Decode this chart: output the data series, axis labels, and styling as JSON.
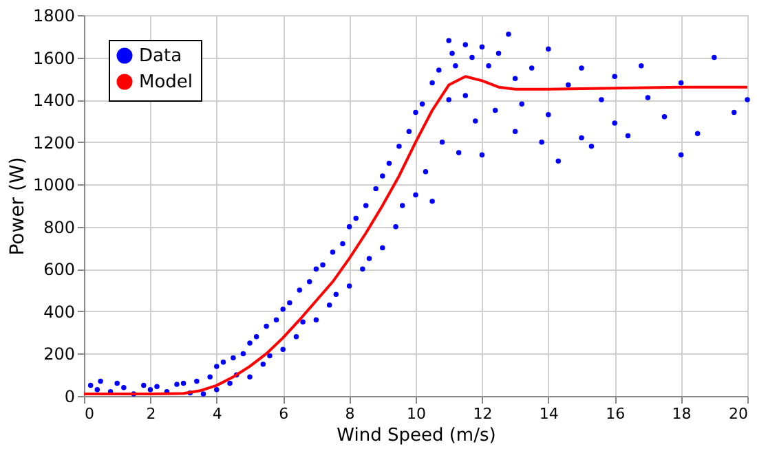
{
  "chart_data": {
    "type": "scatter",
    "xlabel": "Wind Speed (m/s)",
    "ylabel": "Power (W)",
    "xlim": [
      0,
      20
    ],
    "xticks": [
      0,
      2,
      4,
      6,
      8,
      10,
      12,
      14,
      16,
      18,
      20
    ],
    "ylim": [
      0,
      1800
    ],
    "yticks": [
      0,
      200,
      400,
      600,
      800,
      1000,
      1200,
      1400,
      1600,
      1800
    ],
    "grid": true,
    "legend": "top left",
    "series": [
      {
        "name": "Data",
        "color": "#0000ff",
        "type": "scatter",
        "marker": "circle",
        "x": [
          0.2,
          0.4,
          0.5,
          0.8,
          1.0,
          1.2,
          1.5,
          1.8,
          2.0,
          2.2,
          2.5,
          2.8,
          3.0,
          3.2,
          3.4,
          3.6,
          3.8,
          4.0,
          4.0,
          4.2,
          4.4,
          4.5,
          4.6,
          4.8,
          5.0,
          5.0,
          5.2,
          5.4,
          5.5,
          5.6,
          5.8,
          6.0,
          6.0,
          6.2,
          6.4,
          6.5,
          6.6,
          6.8,
          7.0,
          7.0,
          7.2,
          7.4,
          7.5,
          7.6,
          7.8,
          8.0,
          8.0,
          8.2,
          8.4,
          8.5,
          8.6,
          8.8,
          9.0,
          9.0,
          9.2,
          9.4,
          9.5,
          9.6,
          9.8,
          10.0,
          10.0,
          10.2,
          10.3,
          10.5,
          10.5,
          10.7,
          10.8,
          11.0,
          11.0,
          11.1,
          11.2,
          11.3,
          11.5,
          11.5,
          11.7,
          11.8,
          12.0,
          12.0,
          12.2,
          12.4,
          12.5,
          12.8,
          13.0,
          13.0,
          13.2,
          13.5,
          13.8,
          14.0,
          14.0,
          14.3,
          14.6,
          15.0,
          15.0,
          15.3,
          15.6,
          16.0,
          16.0,
          16.4,
          16.8,
          17.0,
          17.5,
          18.0,
          18.0,
          18.5,
          19.0,
          19.6,
          20.0
        ],
        "values": [
          50,
          30,
          70,
          20,
          60,
          40,
          10,
          50,
          30,
          45,
          20,
          55,
          60,
          15,
          70,
          10,
          90,
          140,
          30,
          160,
          60,
          180,
          100,
          200,
          250,
          90,
          280,
          150,
          330,
          190,
          360,
          410,
          220,
          440,
          280,
          500,
          350,
          540,
          600,
          360,
          620,
          430,
          680,
          480,
          720,
          800,
          520,
          840,
          600,
          900,
          650,
          980,
          1040,
          700,
          1100,
          800,
          1180,
          900,
          1250,
          1340,
          950,
          1380,
          1060,
          1480,
          920,
          1540,
          1200,
          1680,
          1400,
          1620,
          1560,
          1150,
          1660,
          1420,
          1600,
          1300,
          1650,
          1140,
          1560,
          1350,
          1620,
          1710,
          1500,
          1250,
          1380,
          1550,
          1200,
          1640,
          1330,
          1110,
          1470,
          1550,
          1220,
          1180,
          1400,
          1510,
          1290,
          1230,
          1560,
          1410,
          1320,
          1480,
          1140,
          1240,
          1600,
          1340,
          1400
        ]
      },
      {
        "name": "Model",
        "color": "#ff0000",
        "type": "line",
        "line_style": "solid",
        "marker": "none",
        "x": [
          0,
          1,
          2,
          3,
          3.5,
          4,
          4.5,
          5,
          5.5,
          6,
          6.5,
          7,
          7.5,
          8,
          8.5,
          9,
          9.5,
          10,
          10.5,
          11,
          11.5,
          12,
          12.5,
          13,
          14,
          16,
          18,
          20
        ],
        "values": [
          10,
          10,
          10,
          12,
          25,
          50,
          90,
          140,
          200,
          275,
          360,
          450,
          540,
          650,
          770,
          900,
          1040,
          1200,
          1350,
          1470,
          1510,
          1490,
          1460,
          1450,
          1450,
          1455,
          1460,
          1460
        ]
      }
    ]
  }
}
